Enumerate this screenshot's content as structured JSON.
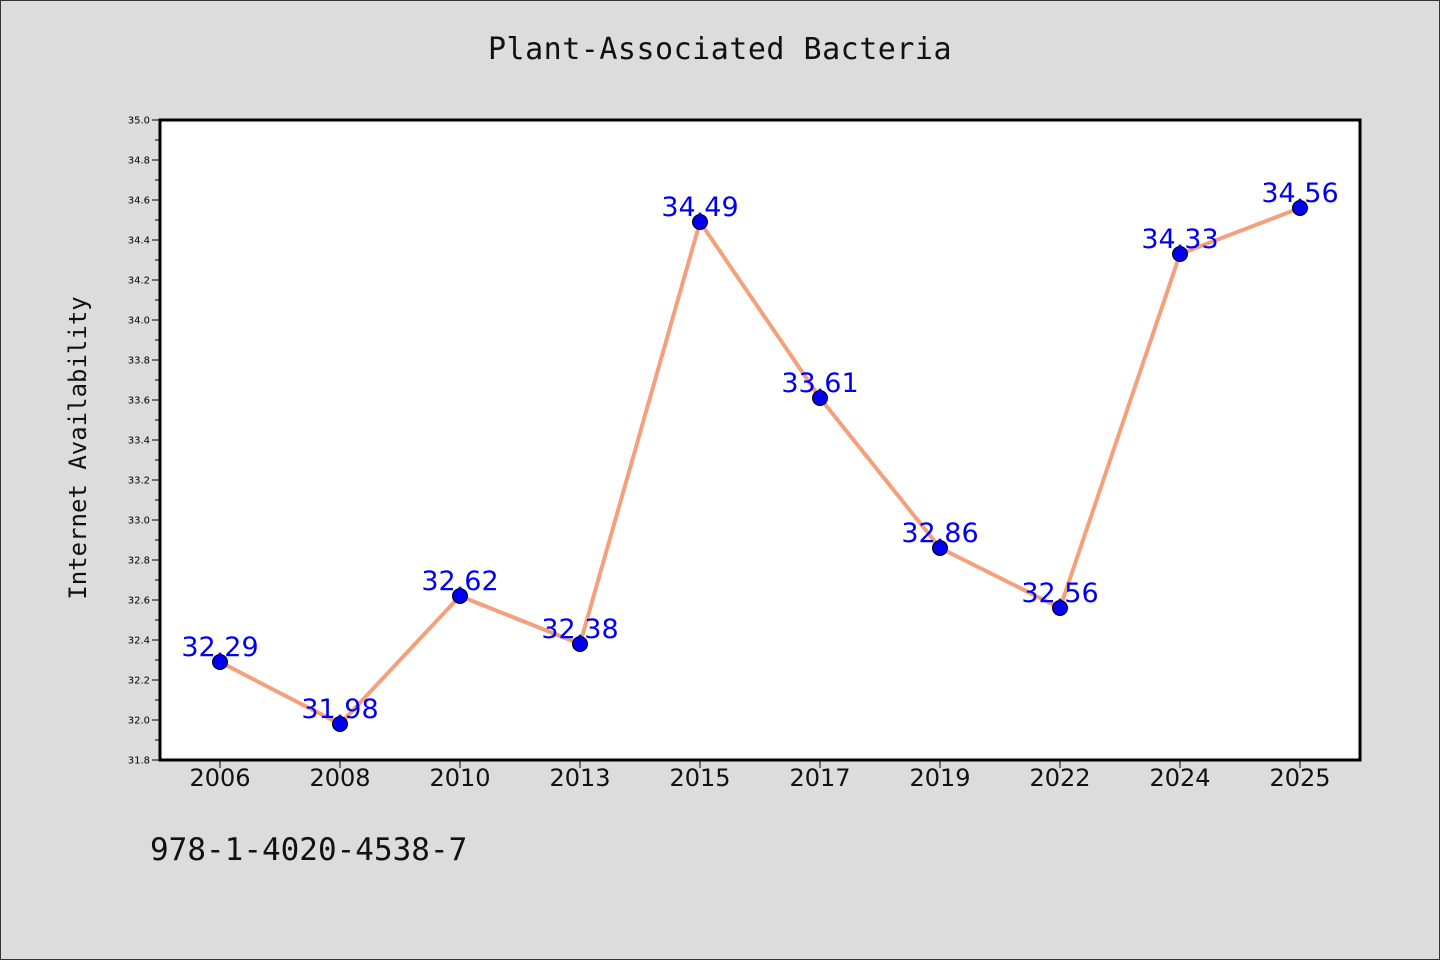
{
  "footer": {
    "code": "978-1-4020-4538-7"
  },
  "chart_data": {
    "type": "line",
    "title": "Plant-Associated Bacteria",
    "xlabel": "",
    "ylabel": "Internet Availability",
    "categories": [
      "2006",
      "2008",
      "2010",
      "2013",
      "2015",
      "2017",
      "2019",
      "2022",
      "2024",
      "2025"
    ],
    "series": [
      {
        "values": [
          32.29,
          31.98,
          32.62,
          32.38,
          34.49,
          33.61,
          32.86,
          32.56,
          34.33,
          34.56
        ],
        "line_color": "#f4a07c",
        "marker_color": "#0000ee"
      }
    ],
    "data_labels": [
      "32.29",
      "31.98",
      "32.62",
      "32.38",
      "34.49",
      "33.61",
      "32.86",
      "32.56",
      "34.33",
      "34.56"
    ],
    "ylim": [
      31.8,
      35.0
    ],
    "yticks": [
      "31.8",
      "32.0",
      "32.2",
      "32.4",
      "32.6",
      "32.8",
      "33.0",
      "33.2",
      "33.4",
      "33.6",
      "33.8",
      "34.0",
      "34.2",
      "34.4",
      "34.6",
      "34.8",
      "35.0"
    ],
    "grid": false,
    "legend": "none"
  }
}
